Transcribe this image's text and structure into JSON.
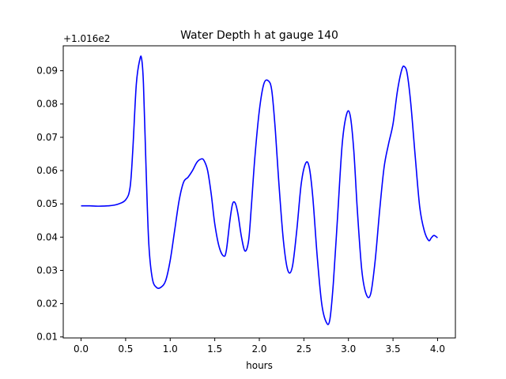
{
  "chart_data": {
    "type": "line",
    "title": "Water Depth h at gauge 140",
    "xlabel": "hours",
    "ylabel": "",
    "offset_text": "+1.016e2",
    "y_offset": 101.6,
    "xlim": [
      -0.2,
      4.2
    ],
    "ylim": [
      0.0097,
      0.0975
    ],
    "xticks": [
      0.0,
      0.5,
      1.0,
      1.5,
      2.0,
      2.5,
      3.0,
      3.5,
      4.0
    ],
    "xtick_labels": [
      "0.0",
      "0.5",
      "1.0",
      "1.5",
      "2.0",
      "2.5",
      "3.0",
      "3.5",
      "4.0"
    ],
    "yticks": [
      0.01,
      0.02,
      0.03,
      0.04,
      0.05,
      0.06,
      0.07,
      0.08,
      0.09
    ],
    "ytick_labels": [
      "0.01",
      "0.02",
      "0.03",
      "0.04",
      "0.05",
      "0.06",
      "0.07",
      "0.08",
      "0.09"
    ],
    "grid": false,
    "series": [
      {
        "color": "#0000ff",
        "x": [
          0.0,
          0.1,
          0.2,
          0.3,
          0.4,
          0.5,
          0.55,
          0.58,
          0.62,
          0.66,
          0.68,
          0.7,
          0.73,
          0.76,
          0.8,
          0.85,
          0.9,
          0.95,
          1.0,
          1.05,
          1.1,
          1.15,
          1.2,
          1.25,
          1.3,
          1.35,
          1.38,
          1.42,
          1.46,
          1.5,
          1.55,
          1.6,
          1.63,
          1.67,
          1.7,
          1.73,
          1.76,
          1.8,
          1.84,
          1.88,
          1.91,
          1.95,
          2.0,
          2.05,
          2.1,
          2.14,
          2.18,
          2.22,
          2.27,
          2.32,
          2.37,
          2.42,
          2.47,
          2.52,
          2.56,
          2.6,
          2.65,
          2.7,
          2.75,
          2.79,
          2.83,
          2.88,
          2.93,
          2.98,
          3.02,
          3.06,
          3.1,
          3.15,
          3.2,
          3.25,
          3.3,
          3.35,
          3.4,
          3.45,
          3.5,
          3.55,
          3.6,
          3.63,
          3.66,
          3.7,
          3.75,
          3.8,
          3.85,
          3.9,
          3.93,
          3.96,
          4.0
        ],
        "y": [
          0.0494,
          0.0494,
          0.0493,
          0.0494,
          0.0498,
          0.0512,
          0.055,
          0.066,
          0.086,
          0.0935,
          0.0935,
          0.086,
          0.06,
          0.038,
          0.0275,
          0.0248,
          0.025,
          0.027,
          0.033,
          0.042,
          0.051,
          0.0565,
          0.058,
          0.06,
          0.0625,
          0.0635,
          0.063,
          0.06,
          0.053,
          0.044,
          0.037,
          0.0343,
          0.036,
          0.045,
          0.05,
          0.0502,
          0.047,
          0.04,
          0.0358,
          0.039,
          0.049,
          0.064,
          0.078,
          0.086,
          0.087,
          0.084,
          0.072,
          0.056,
          0.039,
          0.03,
          0.031,
          0.042,
          0.056,
          0.0622,
          0.061,
          0.052,
          0.034,
          0.02,
          0.0145,
          0.015,
          0.026,
          0.047,
          0.068,
          0.077,
          0.0765,
          0.066,
          0.048,
          0.03,
          0.0228,
          0.023,
          0.033,
          0.048,
          0.061,
          0.068,
          0.074,
          0.084,
          0.0905,
          0.0912,
          0.089,
          0.08,
          0.064,
          0.049,
          0.042,
          0.039,
          0.0398,
          0.0405,
          0.0398
        ]
      }
    ]
  }
}
